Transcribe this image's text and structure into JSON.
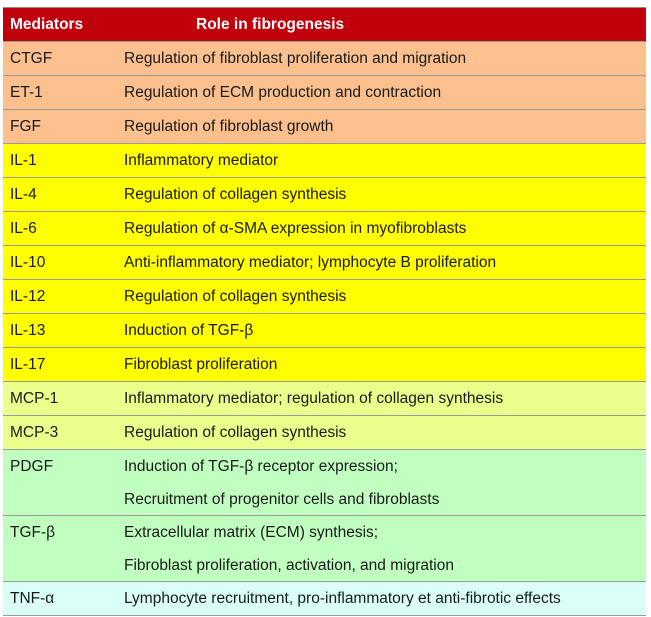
{
  "header": {
    "col1": "Mediators",
    "col2": "Role in fibrogenesis"
  },
  "colors": {
    "header": "#c0000b",
    "orange": "#fbc08e",
    "yellow": "#ffff00",
    "lime": "#eaff8c",
    "green": "#c1ffc1",
    "cyan": "#d9fff7"
  },
  "rows": [
    {
      "mediator": "CTGF",
      "roles": [
        "Regulation of fibroblast proliferation and migration"
      ],
      "color": "orange"
    },
    {
      "mediator": "ET-1",
      "roles": [
        "Regulation of ECM production and contraction"
      ],
      "color": "orange"
    },
    {
      "mediator": "FGF",
      "roles": [
        "Regulation of fibroblast growth"
      ],
      "color": "orange"
    },
    {
      "mediator": "IL-1",
      "roles": [
        "Inflammatory mediator"
      ],
      "color": "yellow"
    },
    {
      "mediator": "IL-4",
      "roles": [
        "Regulation of collagen synthesis"
      ],
      "color": "yellow"
    },
    {
      "mediator": "IL-6",
      "roles": [
        "Regulation of α-SMA expression in myofibroblasts"
      ],
      "color": "yellow"
    },
    {
      "mediator": "IL-10",
      "roles": [
        "Anti-inflammatory mediator; lymphocyte B proliferation"
      ],
      "color": "yellow"
    },
    {
      "mediator": "IL-12",
      "roles": [
        "Regulation of collagen synthesis"
      ],
      "color": "yellow"
    },
    {
      "mediator": "IL-13",
      "roles": [
        "Induction of TGF-β"
      ],
      "color": "yellow"
    },
    {
      "mediator": "IL-17",
      "roles": [
        "Fibroblast proliferation"
      ],
      "color": "yellow"
    },
    {
      "mediator": "MCP-1",
      "roles": [
        "Inflammatory mediator; regulation of collagen synthesis"
      ],
      "color": "lime"
    },
    {
      "mediator": "MCP-3",
      "roles": [
        "Regulation of collagen synthesis"
      ],
      "color": "lime"
    },
    {
      "mediator": "PDGF",
      "roles": [
        "Induction of TGF-β receptor expression;",
        "Recruitment of progenitor cells and fibroblasts"
      ],
      "color": "green"
    },
    {
      "mediator": "TGF-β",
      "roles": [
        "Extracellular matrix (ECM) synthesis;",
        "Fibroblast proliferation, activation, and migration"
      ],
      "color": "green"
    },
    {
      "mediator": "TNF-α",
      "roles": [
        "Lymphocyte recruitment, pro-inflammatory et anti-fibrotic effects"
      ],
      "color": "cyan"
    }
  ]
}
